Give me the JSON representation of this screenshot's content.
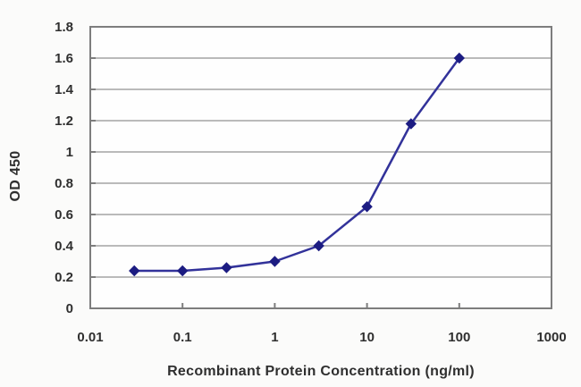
{
  "chart_data": {
    "type": "line",
    "title": "",
    "xlabel": "Recombinant Protein Concentration (ng/ml)",
    "ylabel": "OD 450",
    "x_scale": "log",
    "x": [
      0.03,
      0.1,
      0.3,
      1,
      3,
      10,
      30,
      100
    ],
    "y": [
      0.24,
      0.24,
      0.26,
      0.3,
      0.4,
      0.65,
      1.18,
      1.6
    ],
    "x_ticks": [
      0.01,
      0.1,
      1,
      10,
      100,
      1000
    ],
    "x_tick_labels": [
      "0.01",
      "0.1",
      "1",
      "10",
      "100",
      "1000"
    ],
    "y_ticks": [
      0,
      0.2,
      0.4,
      0.6,
      0.8,
      1,
      1.2,
      1.4,
      1.6,
      1.8
    ],
    "y_tick_labels": [
      "0",
      "0.2",
      "0.4",
      "0.6",
      "0.8",
      "1",
      "1.2",
      "1.4",
      "1.6",
      "1.8"
    ],
    "xlim": [
      0.01,
      1000
    ],
    "ylim": [
      0,
      1.8
    ],
    "grid": "horizontal",
    "legend": "none",
    "marker": "diamond",
    "colors": {
      "line": "#32329a",
      "marker": "#1c1c82",
      "gridline": "#a3a3a3",
      "plot_border": "#7d7d7d",
      "plot_background": "#fefefe",
      "page_background": "#fbfbfa",
      "text": "#2f2f2f"
    }
  }
}
